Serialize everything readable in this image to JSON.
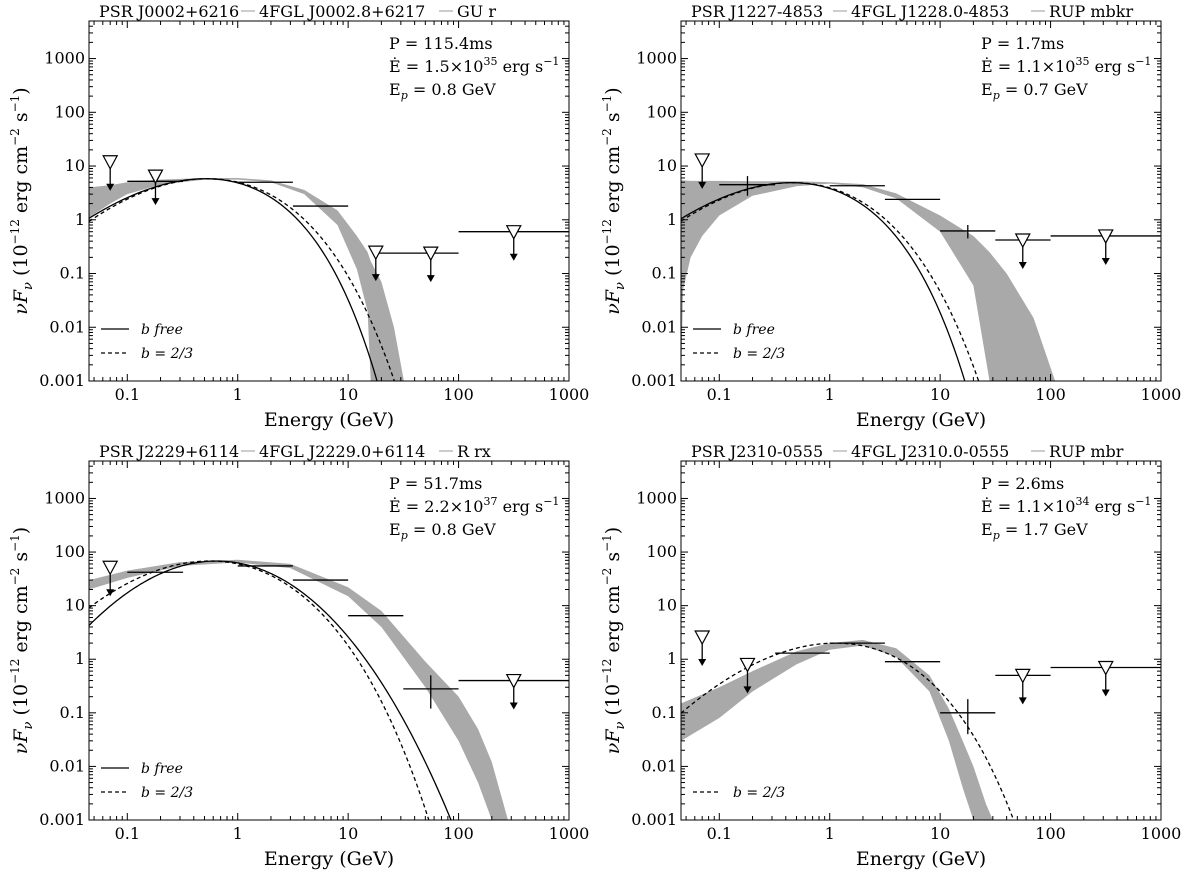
{
  "colors": {
    "band": "#a9a9a9",
    "line": "#000000",
    "background": "#ffffff"
  },
  "chart_data": [
    {
      "type": "line",
      "title_parts": [
        "PSR J0002+6216",
        "4FGL J0002.8+6217",
        "GU r"
      ],
      "info": {
        "period": "P = 115.4ms",
        "edot": "Ė = 1.5×10",
        "edot_exp": "35",
        "edot_unit": "erg s",
        "edot_unit_exp": "−1",
        "ep": "E",
        "ep_sub": "p",
        "ep_val": "= 0.8 GeV"
      },
      "xlabel": "Energy (GeV)",
      "ylabel": "νF",
      "ylabel_sub": "ν",
      "ylabel_unit": "(10",
      "ylabel_unit_exp": "−12",
      "ylabel_unit2": "erg cm",
      "ylabel_unit2_exp": "−2",
      "ylabel_unit3": "s",
      "ylabel_unit3_exp": "−1",
      "ylabel_unit4": ")",
      "xscale": "log",
      "yscale": "log",
      "xlim": [
        0.045,
        1000
      ],
      "ylim": [
        0.001,
        5000
      ],
      "xticks": [
        "0.1",
        "1",
        "10",
        "100",
        "1000"
      ],
      "yticks": [
        "0.001",
        "0.01",
        "0.1",
        "1",
        "10",
        "100",
        "1000"
      ],
      "legend": [
        {
          "label": "b free",
          "style": "solid"
        },
        {
          "label": "b = 2/3",
          "style": "dashed"
        }
      ],
      "legend_loc": "lower left",
      "model": {
        "Ep": 0.8,
        "peak": 5.8,
        "bfree_exp": 0.7,
        "b23_exp": 0.6
      },
      "band": [
        [
          0.045,
          1.1,
          4.0
        ],
        [
          0.07,
          2.0,
          4.4
        ],
        [
          0.1,
          3.0,
          5.0
        ],
        [
          0.2,
          4.5,
          5.6
        ],
        [
          0.5,
          5.6,
          6.0
        ],
        [
          1,
          5.6,
          6.0
        ],
        [
          2,
          5.0,
          5.4
        ],
        [
          4,
          3.0,
          3.6
        ],
        [
          8,
          0.8,
          1.5
        ],
        [
          12,
          0.12,
          0.5
        ],
        [
          15,
          0.02,
          0.25
        ],
        [
          16,
          0.001,
          0.17
        ],
        [
          20,
          0.001,
          0.07
        ],
        [
          26,
          0.001,
          0.01
        ],
        [
          32,
          0.001,
          0.001
        ]
      ],
      "points": [
        {
          "x": 0.18,
          "xlo": 0.1,
          "xhi": 0.32,
          "y": 5.2,
          "ylo": 4.5,
          "yhi": 6.0
        },
        {
          "x": 1.78,
          "xlo": 1.0,
          "xhi": 3.16,
          "y": 5.0
        },
        {
          "x": 5.6,
          "xlo": 3.16,
          "xhi": 10,
          "y": 1.8
        },
        {
          "x": 56,
          "xlo": 17.8,
          "xhi": 100,
          "y": 0.24
        },
        {
          "x": 316,
          "xlo": 100,
          "xhi": 1000,
          "y": 0.6
        }
      ],
      "upper_limits": [
        {
          "x": 0.07,
          "y": 12
        },
        {
          "x": 0.18,
          "y": 6.5
        },
        {
          "x": 17.8,
          "y": 0.25
        },
        {
          "x": 56,
          "y": 0.24
        },
        {
          "x": 316,
          "y": 0.6
        }
      ]
    },
    {
      "type": "line",
      "title_parts": [
        "PSR J1227-4853",
        "4FGL J1228.0-4853",
        "RUP mbkr"
      ],
      "info": {
        "period": "P = 1.7ms",
        "edot": "Ė = 1.1×10",
        "edot_exp": "35",
        "edot_unit": "erg s",
        "edot_unit_exp": "−1",
        "ep": "E",
        "ep_sub": "p",
        "ep_val": "= 0.7 GeV"
      },
      "xlabel": "Energy (GeV)",
      "ylabel": "νF",
      "ylabel_sub": "ν",
      "ylabel_unit": "(10",
      "ylabel_unit_exp": "−12",
      "ylabel_unit2": "erg cm",
      "ylabel_unit2_exp": "−2",
      "ylabel_unit3": "s",
      "ylabel_unit3_exp": "−1",
      "ylabel_unit4": ")",
      "xscale": "log",
      "yscale": "log",
      "xlim": [
        0.045,
        1000
      ],
      "ylim": [
        0.001,
        5000
      ],
      "xticks": [
        "0.1",
        "1",
        "10",
        "100",
        "1000"
      ],
      "yticks": [
        "0.001",
        "0.01",
        "0.1",
        "1",
        "10",
        "100",
        "1000"
      ],
      "legend": [
        {
          "label": "b free",
          "style": "solid"
        },
        {
          "label": "b = 2/3",
          "style": "dashed"
        }
      ],
      "legend_loc": "lower left",
      "model": {
        "Ep": 0.7,
        "peak": 4.9,
        "bfree_exp": 0.68,
        "b23_exp": 0.6
      },
      "band": [
        [
          0.045,
          0.001,
          5.5
        ],
        [
          0.047,
          0.05,
          5.4
        ],
        [
          0.055,
          0.2,
          5.3
        ],
        [
          0.07,
          0.5,
          5.3
        ],
        [
          0.1,
          1.2,
          5.3
        ],
        [
          0.2,
          2.8,
          5.2
        ],
        [
          0.5,
          4.2,
          5.2
        ],
        [
          1,
          4.7,
          5.0
        ],
        [
          2,
          4.0,
          4.6
        ],
        [
          4,
          2.5,
          3.1
        ],
        [
          10,
          0.6,
          1.2
        ],
        [
          20,
          0.06,
          0.5
        ],
        [
          28,
          0.001,
          0.25
        ],
        [
          40,
          0.001,
          0.1
        ],
        [
          70,
          0.001,
          0.015
        ],
        [
          110,
          0.001,
          0.001
        ]
      ],
      "points": [
        {
          "x": 0.18,
          "xlo": 0.1,
          "xhi": 0.32,
          "y": 4.5,
          "ylo": 2.8,
          "yhi": 6.5
        },
        {
          "x": 1.78,
          "xlo": 1.0,
          "xhi": 3.16,
          "y": 4.3
        },
        {
          "x": 5.6,
          "xlo": 3.16,
          "xhi": 10,
          "y": 2.4
        },
        {
          "x": 17.8,
          "xlo": 10,
          "xhi": 31.6,
          "y": 0.62,
          "ylo": 0.45,
          "yhi": 0.8
        },
        {
          "x": 56,
          "xlo": 31.6,
          "xhi": 100,
          "y": 0.42
        },
        {
          "x": 316,
          "xlo": 100,
          "xhi": 1000,
          "y": 0.5
        }
      ],
      "upper_limits": [
        {
          "x": 0.07,
          "y": 13
        },
        {
          "x": 56,
          "y": 0.42
        },
        {
          "x": 316,
          "y": 0.5
        }
      ]
    },
    {
      "type": "line",
      "title_parts": [
        "PSR J2229+6114",
        "4FGL J2229.0+6114",
        "R rx"
      ],
      "info": {
        "period": "P = 51.7ms",
        "edot": "Ė = 2.2×10",
        "edot_exp": "37",
        "edot_unit": "erg s",
        "edot_unit_exp": "−1",
        "ep": "E",
        "ep_sub": "p",
        "ep_val": "= 0.8 GeV"
      },
      "xlabel": "Energy (GeV)",
      "ylabel": "νF",
      "ylabel_sub": "ν",
      "ylabel_unit": "(10",
      "ylabel_unit_exp": "−12",
      "ylabel_unit2": "erg cm",
      "ylabel_unit2_exp": "−2",
      "ylabel_unit3": "s",
      "ylabel_unit3_exp": "−1",
      "ylabel_unit4": ")",
      "xscale": "log",
      "yscale": "log",
      "xlim": [
        0.045,
        1000
      ],
      "ylim": [
        0.001,
        5000
      ],
      "xticks": [
        "0.1",
        "1",
        "10",
        "100",
        "1000"
      ],
      "yticks": [
        "0.001",
        "0.01",
        "0.1",
        "1",
        "10",
        "100",
        "1000"
      ],
      "legend": [
        {
          "label": "b free",
          "style": "solid"
        },
        {
          "label": "b = 2/3",
          "style": "dashed"
        }
      ],
      "legend_loc": "lower left",
      "model": {
        "Ep": 0.8,
        "peak": 68,
        "bfree_exp": 0.36,
        "b23_exp": 0.52
      },
      "band": [
        [
          0.045,
          20,
          30
        ],
        [
          0.1,
          33,
          45
        ],
        [
          0.3,
          55,
          65
        ],
        [
          1,
          64,
          72
        ],
        [
          3,
          50,
          60
        ],
        [
          10,
          15,
          22
        ],
        [
          20,
          4,
          8
        ],
        [
          50,
          0.3,
          0.9
        ],
        [
          100,
          0.03,
          0.2
        ],
        [
          150,
          0.005,
          0.05
        ],
        [
          200,
          0.001,
          0.012
        ],
        [
          280,
          0.001,
          0.001
        ]
      ],
      "points": [
        {
          "x": 0.18,
          "xlo": 0.1,
          "xhi": 0.32,
          "y": 42
        },
        {
          "x": 1.78,
          "xlo": 1.0,
          "xhi": 3.16,
          "y": 55
        },
        {
          "x": 5.6,
          "xlo": 3.16,
          "xhi": 10,
          "y": 30
        },
        {
          "x": 17.8,
          "xlo": 10,
          "xhi": 31.6,
          "y": 6.5
        },
        {
          "x": 56,
          "xlo": 31.6,
          "xhi": 100,
          "y": 0.28,
          "ylo": 0.12,
          "yhi": 0.5
        },
        {
          "x": 316,
          "xlo": 100,
          "xhi": 1000,
          "y": 0.4
        }
      ],
      "upper_limits": [
        {
          "x": 0.07,
          "y": 52
        },
        {
          "x": 316,
          "y": 0.4
        }
      ]
    },
    {
      "type": "line",
      "title_parts": [
        "PSR J2310-0555",
        "4FGL J2310.0-0555",
        "RUP mbr"
      ],
      "info": {
        "period": "P = 2.6ms",
        "edot": "Ė = 1.1×10",
        "edot_exp": "34",
        "edot_unit": "erg s",
        "edot_unit_exp": "−1",
        "ep": "E",
        "ep_sub": "p",
        "ep_val": "= 1.7 GeV"
      },
      "xlabel": "Energy (GeV)",
      "ylabel": "νF",
      "ylabel_sub": "ν",
      "ylabel_unit": "(10",
      "ylabel_unit_exp": "−12",
      "ylabel_unit2": "erg cm",
      "ylabel_unit2_exp": "−2",
      "ylabel_unit3": "s",
      "ylabel_unit3_exp": "−1",
      "ylabel_unit4": ")",
      "xscale": "log",
      "yscale": "log",
      "xlim": [
        0.045,
        1000
      ],
      "ylim": [
        0.001,
        5000
      ],
      "xticks": [
        "0.1",
        "1",
        "10",
        "100",
        "1000"
      ],
      "yticks": [
        "0.001",
        "0.01",
        "0.1",
        "1",
        "10",
        "100",
        "1000"
      ],
      "legend": [
        {
          "label": "b = 2/3",
          "style": "dashed"
        }
      ],
      "legend_loc": "lower left",
      "model": {
        "Ep": 1.7,
        "peak": 2.0,
        "b23_exp": 0.6
      },
      "band": [
        [
          0.045,
          0.03,
          0.15
        ],
        [
          0.1,
          0.08,
          0.3
        ],
        [
          0.2,
          0.25,
          0.6
        ],
        [
          0.5,
          0.8,
          1.4
        ],
        [
          1,
          1.5,
          2.0
        ],
        [
          2,
          1.8,
          2.3
        ],
        [
          4,
          1.1,
          1.6
        ],
        [
          8,
          0.25,
          0.5
        ],
        [
          12,
          0.03,
          0.12
        ],
        [
          16,
          0.004,
          0.03
        ],
        [
          20,
          0.001,
          0.01
        ],
        [
          26,
          0.001,
          0.002
        ],
        [
          30,
          0.001,
          0.001
        ]
      ],
      "points": [
        {
          "x": 0.56,
          "xlo": 0.32,
          "xhi": 1.0,
          "y": 1.3
        },
        {
          "x": 1.78,
          "xlo": 1.0,
          "xhi": 3.16,
          "y": 2.0
        },
        {
          "x": 5.6,
          "xlo": 3.16,
          "xhi": 10,
          "y": 0.9
        },
        {
          "x": 17.8,
          "xlo": 10,
          "xhi": 31.6,
          "y": 0.1,
          "ylo": 0.04,
          "yhi": 0.18
        },
        {
          "x": 56,
          "xlo": 31.6,
          "xhi": 100,
          "y": 0.5
        },
        {
          "x": 316,
          "xlo": 100,
          "xhi": 1000,
          "y": 0.7
        }
      ],
      "upper_limits": [
        {
          "x": 0.07,
          "y": 2.6
        },
        {
          "x": 0.18,
          "y": 0.8
        },
        {
          "x": 56,
          "y": 0.5
        },
        {
          "x": 316,
          "y": 0.7
        }
      ]
    }
  ]
}
